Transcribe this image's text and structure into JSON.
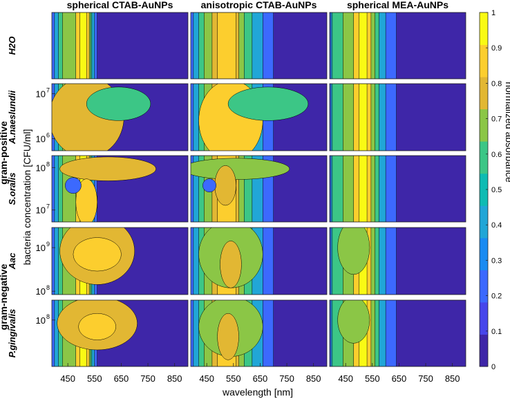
{
  "chart_data": {
    "type": "heatmap",
    "subtype": "filled-contour",
    "columns": [
      "spherical CTAB-AuNPs",
      "anisotropic CTAB-AuNPs",
      "spherical MEA-AuNPs"
    ],
    "rows": [
      {
        "label": "H2O",
        "yticks": []
      },
      {
        "label": "A.naeslundii",
        "yticks": [
          {
            "label": "10",
            "exp": "7",
            "v": 7
          },
          {
            "label": "10",
            "exp": "6",
            "v": 6
          }
        ]
      },
      {
        "label": "S.oralis",
        "yticks": [
          {
            "label": "10",
            "exp": "8",
            "v": 8
          },
          {
            "label": "10",
            "exp": "7",
            "v": 7
          }
        ]
      },
      {
        "label": "Aac",
        "yticks": [
          {
            "label": "10",
            "exp": "9",
            "v": 9
          },
          {
            "label": "10",
            "exp": "8",
            "v": 8
          }
        ]
      },
      {
        "label": "P.gingivalis",
        "yticks": [
          {
            "label": "10",
            "exp": "8",
            "v": 8
          }
        ]
      }
    ],
    "groups": [
      {
        "label": "gram-positive",
        "rows": [
          1,
          2
        ]
      },
      {
        "label": "gram-negative",
        "rows": [
          3,
          4
        ]
      }
    ],
    "xlabel": "wavelength [nm]",
    "ylabel": "bacteria concentration [CFU/ml]",
    "xticks": [
      450,
      550,
      650,
      750,
      850
    ],
    "xlim": [
      390,
      900
    ],
    "colorbar": {
      "label": "normalized absorbance",
      "range": [
        0,
        1
      ],
      "ticks": [
        "0",
        "0.1",
        "0.2",
        "0.3",
        "0.4",
        "0.5",
        "0.6",
        "0.7",
        "0.8",
        "0.9",
        "1"
      ],
      "colors": [
        "#3e26a8",
        "#4746eb",
        "#3c69fe",
        "#1a8bf2",
        "#21a6d7",
        "#0ebbb3",
        "#3cc686",
        "#8bc646",
        "#e2b733",
        "#fcce2e",
        "#f9fa14"
      ]
    }
  }
}
